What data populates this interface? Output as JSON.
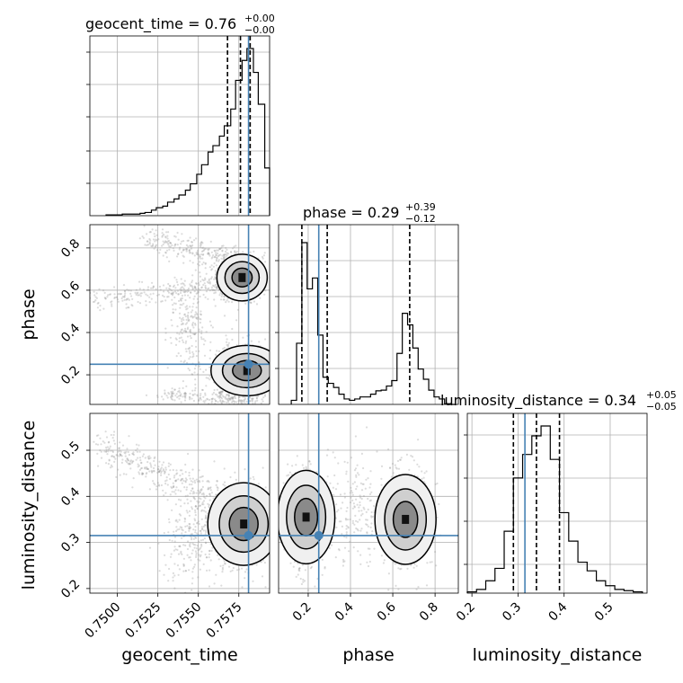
{
  "chart_data": {
    "type": "corner",
    "parameters": [
      "geocent_time",
      "phase",
      "luminosity_distance"
    ],
    "axis_labels": [
      "geocent_time",
      "phase",
      "luminosity_distance"
    ],
    "ranges": {
      "geocent_time": [
        0.7483,
        0.7594
      ],
      "phase": [
        0.06,
        0.91
      ],
      "luminosity_distance": [
        0.19,
        0.58
      ]
    },
    "ticks": {
      "geocent_time": [
        "0.7500",
        "0.7525",
        "0.7550",
        "0.7575"
      ],
      "phase_x": [
        "0.2",
        "0.4",
        "0.6",
        "0.8"
      ],
      "phase_y": [
        "0.2",
        "0.4",
        "0.6",
        "0.8"
      ],
      "luminosity_distance_x": [
        "0.2",
        "0.3",
        "0.4",
        "0.5"
      ],
      "luminosity_distance_y": [
        "0.2",
        "0.3",
        "0.4",
        "0.5"
      ]
    },
    "truths": {
      "geocent_time": 0.7581,
      "phase": 0.25,
      "luminosity_distance": 0.315
    },
    "titles": [
      {
        "param": "geocent_time",
        "prefix": "geocent_time = ",
        "median": "0.76",
        "plus": "+0.00",
        "minus": "−0.00"
      },
      {
        "param": "phase",
        "prefix": "phase = ",
        "median": "0.29",
        "plus": "+0.39",
        "minus": "−0.12"
      },
      {
        "param": "luminosity_distance",
        "prefix": "luminosity_distance = ",
        "median": "0.34",
        "plus": "+0.05",
        "minus": "−0.05"
      }
    ],
    "quantiles": {
      "geocent_time": [
        0.7568,
        0.7576,
        0.7582
      ],
      "phase": [
        0.17,
        0.29,
        0.68
      ],
      "luminosity_distance": [
        0.29,
        0.34,
        0.39
      ]
    },
    "histograms": {
      "geocent_time": {
        "edges": [
          0.7493,
          0.7496,
          0.75,
          0.7503,
          0.7507,
          0.751,
          0.7514,
          0.7517,
          0.7521,
          0.7524,
          0.7528,
          0.7531,
          0.7535,
          0.7538,
          0.7542,
          0.7545,
          0.7549,
          0.7552,
          0.7556,
          0.7559,
          0.7563,
          0.7566,
          0.757,
          0.7573,
          0.7577,
          0.758,
          0.7584,
          0.7587,
          0.7591,
          0.7594
        ],
        "counts": [
          1,
          1,
          1,
          2,
          2,
          2,
          3,
          4,
          7,
          10,
          12,
          17,
          21,
          26,
          32,
          40,
          52,
          64,
          80,
          88,
          100,
          113,
          134,
          170,
          195,
          210,
          180,
          140,
          60
        ]
      },
      "phase": {
        "edges": [
          0.12,
          0.145,
          0.17,
          0.195,
          0.22,
          0.245,
          0.27,
          0.295,
          0.32,
          0.345,
          0.37,
          0.395,
          0.42,
          0.445,
          0.47,
          0.495,
          0.52,
          0.545,
          0.57,
          0.595,
          0.62,
          0.645,
          0.67,
          0.695,
          0.72,
          0.745,
          0.77,
          0.795,
          0.82,
          0.845,
          0.87,
          0.895
        ],
        "counts": [
          6,
          90,
          238,
          170,
          186,
          102,
          40,
          31,
          25,
          15,
          8,
          6,
          8,
          11,
          11,
          15,
          20,
          21,
          27,
          35,
          75,
          134,
          117,
          83,
          52,
          37,
          21,
          11,
          8,
          1,
          0
        ]
      },
      "luminosity_distance": {
        "edges": [
          0.19,
          0.21,
          0.23,
          0.25,
          0.27,
          0.29,
          0.31,
          0.33,
          0.35,
          0.37,
          0.39,
          0.41,
          0.43,
          0.45,
          0.47,
          0.49,
          0.51,
          0.53,
          0.55,
          0.57
        ],
        "counts": [
          1,
          3,
          10,
          20,
          50,
          93,
          112,
          127,
          135,
          108,
          65,
          42,
          25,
          18,
          10,
          6,
          3,
          2,
          1
        ]
      }
    },
    "density_peaks": {
      "geocent_time_vs_phase": [
        [
          0.7578,
          0.67
        ],
        [
          0.7579,
          0.23
        ]
      ],
      "geocent_time_vs_luminosity_distance": [
        [
          0.7578,
          0.33
        ]
      ],
      "phase_vs_luminosity_distance": [
        [
          0.18,
          0.35
        ],
        [
          0.66,
          0.35
        ]
      ]
    }
  }
}
